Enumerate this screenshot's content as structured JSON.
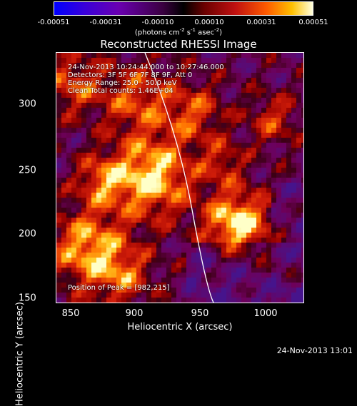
{
  "colorbar": {
    "ticks": [
      "-0.00051",
      "-0.00031",
      "-0.00010",
      "0.00010",
      "0.00031",
      "0.00051"
    ],
    "units_prefix": "(photons cm",
    "units_exp1": "-2",
    "units_mid1": " s",
    "units_exp2": "-1",
    "units_mid2": " asec",
    "units_exp3": "-2",
    "units_suffix": ")"
  },
  "title": "Reconstructed RHESSI Image",
  "info": {
    "time_range": "24-Nov-2013 10:24:44.000 to 10:27:46.000",
    "detectors": "Detectors: 3F 5F 6F 7F 8F 9F, Att 0",
    "energy": "Energy Range: 25.0 - 50.0 keV",
    "clean": "Clean     Total counts: 1.46E+04",
    "peak": "Position of Peak = [982,215]"
  },
  "axes": {
    "xlabel": "Heliocentric X (arcsec)",
    "ylabel": "Heliocentric Y (arcsec)",
    "xticks": [
      "850",
      "900",
      "950",
      "1000"
    ],
    "yticks": [
      "300",
      "250",
      "200",
      "150"
    ]
  },
  "timestamp": "24-Nov-2013 13:01",
  "colors": {
    "background": "#000000",
    "low": "#3a0070",
    "mid": "#c01010",
    "high": "#ffffe0"
  }
}
